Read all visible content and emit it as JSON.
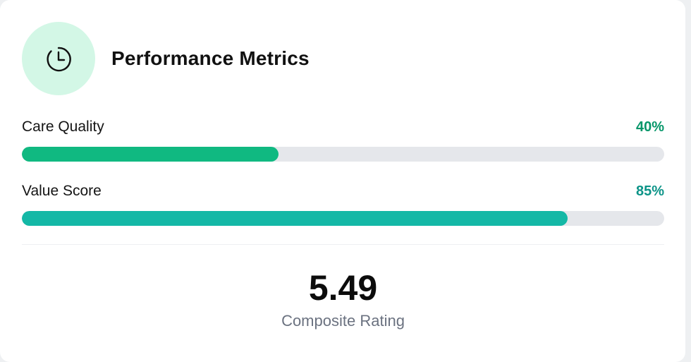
{
  "header": {
    "title": "Performance Metrics",
    "icon": "clock-icon",
    "icon_bg": "#d3f7e6"
  },
  "metrics": [
    {
      "label": "Care Quality",
      "percent_label": "40%",
      "value": 40,
      "bar_color": "#10b981",
      "text_color": "#059669"
    },
    {
      "label": "Value Score",
      "percent_label": "85%",
      "value": 85,
      "bar_color": "#14b8a6",
      "text_color": "#0d9488"
    }
  ],
  "composite": {
    "value": "5.49",
    "label": "Composite Rating"
  }
}
